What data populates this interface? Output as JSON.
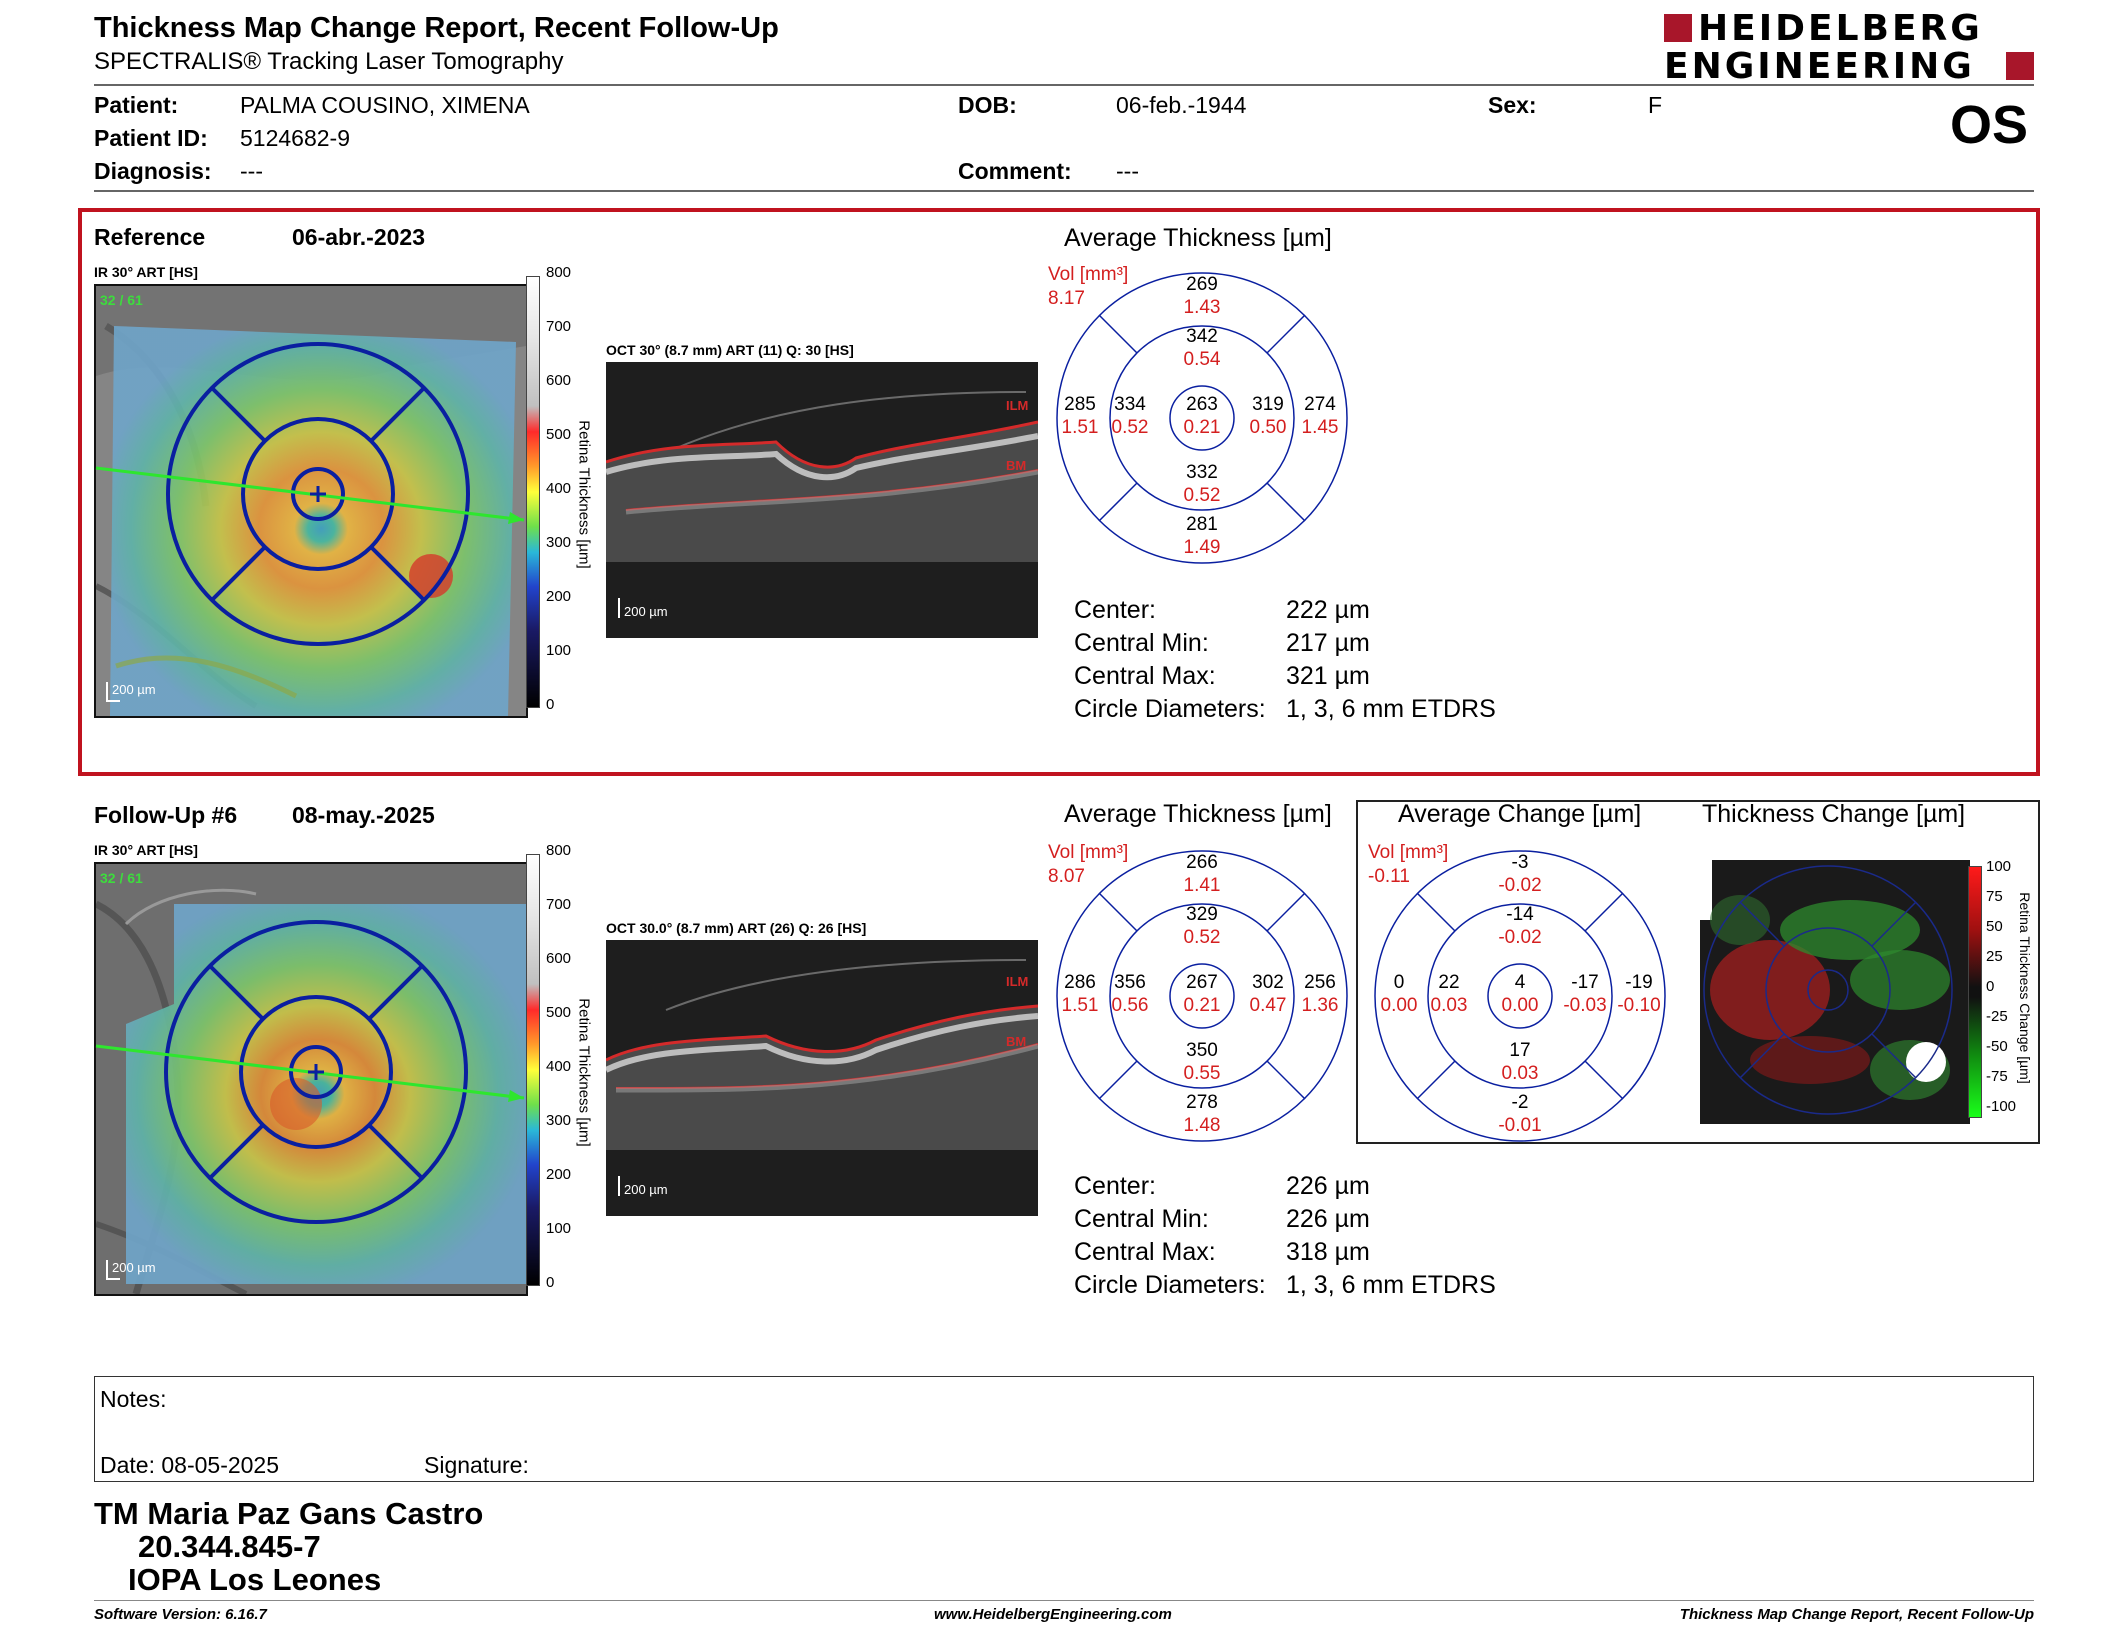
{
  "header": {
    "title": "Thickness Map Change Report, Recent Follow-Up",
    "subtitle": "SPECTRALIS® Tracking Laser Tomography",
    "logo_line1": "HEIDELBERG",
    "logo_line2": "ENGINEERING",
    "eye": "OS"
  },
  "patient": {
    "patient_label": "Patient:",
    "patient_value": "PALMA COUSINO, XIMENA",
    "id_label": "Patient ID:",
    "id_value": "5124682-9",
    "diag_label": "Diagnosis:",
    "diag_value": "---",
    "dob_label": "DOB:",
    "dob_value": "06-feb.-1944",
    "comment_label": "Comment:",
    "comment_value": "---",
    "sex_label": "Sex:",
    "sex_value": "F"
  },
  "reference": {
    "label": "Reference",
    "date": "06-abr.-2023",
    "ir_label": "IR 30° ART [HS]",
    "ir_overlay": "32 / 61",
    "scale_text": "200 µm",
    "oct_label": "OCT 30° (8.7 mm) ART (11) Q: 30 [HS]",
    "oct_scale": "200 µm",
    "avg_title": "Average Thickness [µm]",
    "vol_label": "Vol [mm³]",
    "vol_value": "8.17",
    "sectors": {
      "outer_top": {
        "t": "269",
        "v": "1.43"
      },
      "inner_top": {
        "t": "342",
        "v": "0.54"
      },
      "outer_left": {
        "t": "285",
        "v": "1.51"
      },
      "inner_left": {
        "t": "334",
        "v": "0.52"
      },
      "center": {
        "t": "263",
        "v": "0.21"
      },
      "inner_right": {
        "t": "319",
        "v": "0.50"
      },
      "outer_right": {
        "t": "274",
        "v": "1.45"
      },
      "inner_bottom": {
        "t": "332",
        "v": "0.52"
      },
      "outer_bottom": {
        "t": "281",
        "v": "1.49"
      }
    },
    "stats": {
      "center_label": "Center:",
      "center_value": "222 µm",
      "min_label": "Central Min:",
      "min_value": "217 µm",
      "max_label": "Central Max:",
      "max_value": "321 µm",
      "circle_label": "Circle Diameters:",
      "circle_value": "1, 3, 6 mm ETDRS"
    }
  },
  "followup": {
    "label": "Follow-Up #6",
    "date": "08-may.-2025",
    "ir_label": "IR 30° ART [HS]",
    "ir_overlay": "32 / 61",
    "scale_text": "200 µm",
    "oct_label": "OCT 30.0° (8.7 mm) ART (26) Q: 26 [HS]",
    "oct_scale": "200 µm",
    "avg_title": "Average Thickness [µm]",
    "vol_label": "Vol [mm³]",
    "vol_value": "8.07",
    "sectors": {
      "outer_top": {
        "t": "266",
        "v": "1.41"
      },
      "inner_top": {
        "t": "329",
        "v": "0.52"
      },
      "outer_left": {
        "t": "286",
        "v": "1.51"
      },
      "inner_left": {
        "t": "356",
        "v": "0.56"
      },
      "center": {
        "t": "267",
        "v": "0.21"
      },
      "inner_right": {
        "t": "302",
        "v": "0.47"
      },
      "outer_right": {
        "t": "256",
        "v": "1.36"
      },
      "inner_bottom": {
        "t": "350",
        "v": "0.55"
      },
      "outer_bottom": {
        "t": "278",
        "v": "1.48"
      }
    },
    "change_title": "Average Change [µm]",
    "change_vol_label": "Vol [mm³]",
    "change_vol_value": "-0.11",
    "change_sectors": {
      "outer_top": {
        "t": "-3",
        "v": "-0.02"
      },
      "inner_top": {
        "t": "-14",
        "v": "-0.02"
      },
      "outer_left": {
        "t": "0",
        "v": "0.00"
      },
      "inner_left": {
        "t": "22",
        "v": "0.03"
      },
      "center": {
        "t": "4",
        "v": "0.00"
      },
      "inner_right": {
        "t": "-17",
        "v": "-0.03"
      },
      "outer_right": {
        "t": "-19",
        "v": "-0.10"
      },
      "inner_bottom": {
        "t": "17",
        "v": "0.03"
      },
      "outer_bottom": {
        "t": "-2",
        "v": "-0.01"
      }
    },
    "map_title": "Thickness Change [µm]",
    "stats": {
      "center_label": "Center:",
      "center_value": "226 µm",
      "min_label": "Central Min:",
      "min_value": "226 µm",
      "max_label": "Central Max:",
      "max_value": "318 µm",
      "circle_label": "Circle Diameters:",
      "circle_value": "1, 3, 6 mm ETDRS"
    }
  },
  "colorbar": {
    "ticks": [
      "800",
      "700",
      "600",
      "500",
      "400",
      "300",
      "200",
      "100",
      "0"
    ],
    "label": "Retina Thickness [µm]"
  },
  "change_colorbar": {
    "ticks": [
      "100",
      "75",
      "50",
      "25",
      "0",
      "-25",
      "-50",
      "-75",
      "-100"
    ],
    "label": "Retina Thickness Change [µm]"
  },
  "oct_labels": {
    "ilm": "ILM",
    "bm": "BM"
  },
  "notes": {
    "notes_label": "Notes:",
    "date_label": "Date: 08-05-2025",
    "signature_label": "Signature:"
  },
  "signatory": {
    "name": "TM Maria Paz Gans Castro",
    "rut": "20.344.845-7",
    "place": "IOPA Los Leones"
  },
  "footer": {
    "software": "Software Version: 6.16.7",
    "website": "www.HeidelbergEngineering.com",
    "report": "Thickness Map Change Report, Recent Follow-Up"
  },
  "colors": {
    "frame_red": "#c0131f",
    "value_red": "#d41f1f",
    "grid_blue": "#0a1fa0",
    "brand_red": "#a8162a"
  }
}
